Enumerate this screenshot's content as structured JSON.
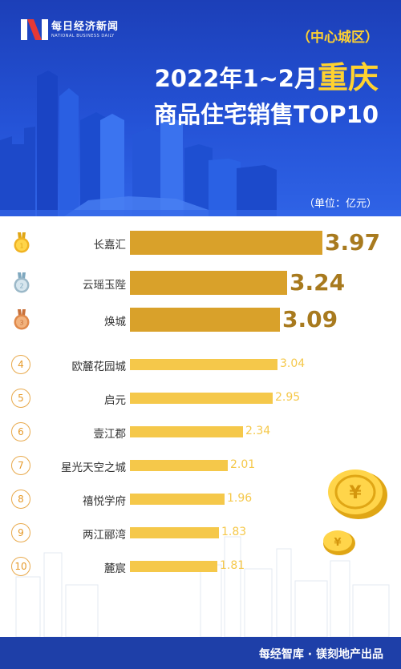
{
  "header": {
    "logo_cn": "每日经济新闻",
    "logo_en": "NATIONAL BUSINESS DAILY",
    "subtitle": "（中心城区）",
    "title_prefix": "2022年1~2月",
    "title_city": "重庆",
    "title_line2": "商品住宅销售TOP10",
    "unit": "（单位：亿元）"
  },
  "colors": {
    "header_blue": "#2452d6",
    "bar_gold": "#d9a12a",
    "bar_light": "#f5c84a",
    "accent_yellow": "#ffd230",
    "footer_blue": "#1e3fa8"
  },
  "chart_data": {
    "type": "bar",
    "orientation": "horizontal",
    "title": "2022年1~2月重庆商品住宅销售TOP10",
    "ylabel": "（单位：亿元）",
    "categories": [
      "长嘉汇",
      "云瑶玉陛",
      "焕城",
      "欧麓花园城",
      "启元",
      "壹江郡",
      "星光天空之城",
      "禧悦学府",
      "两江郦湾",
      "麓宸"
    ],
    "values": [
      3.97,
      3.24,
      3.09,
      3.04,
      2.95,
      2.34,
      2.01,
      1.96,
      1.83,
      1.81
    ],
    "value_labels": [
      "3.97",
      "3.24",
      "3.09",
      "3.04",
      "2.95",
      "2.34",
      "2.01",
      "1.96",
      "1.83",
      "1.81"
    ],
    "ranks": [
      "1",
      "2",
      "3",
      "4",
      "5",
      "6",
      "7",
      "8",
      "9",
      "10"
    ],
    "medal_icons": [
      "gold-medal-icon",
      "silver-medal-icon",
      "bronze-medal-icon"
    ],
    "xlim": [
      0,
      3.97
    ]
  },
  "footer": {
    "text": "每经智库 · 镁刻地产出品"
  }
}
